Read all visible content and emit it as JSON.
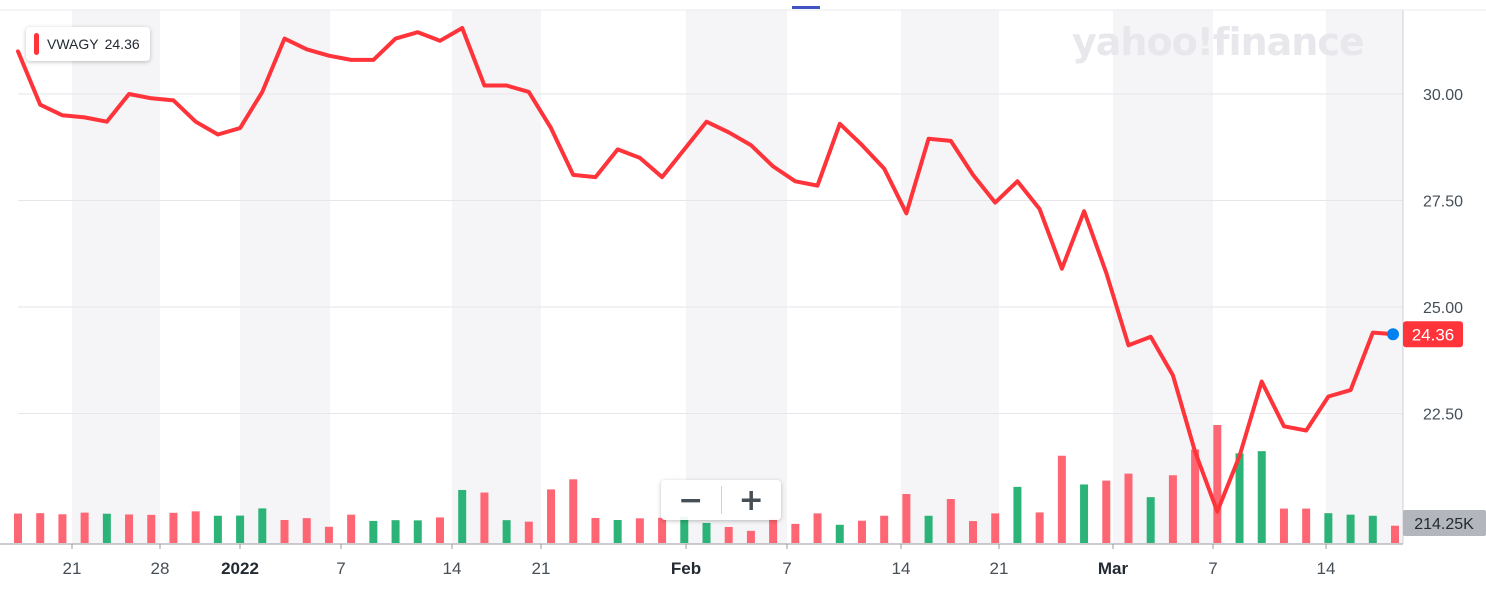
{
  "chart_data": {
    "type": "line",
    "symbol": "VWAGY",
    "watermark": "yahoo!finance",
    "last_value_label": "24.36",
    "volume_label": "214.25K",
    "colors": {
      "line": "#ff333a",
      "up": "#2cb377",
      "down": "#ff6673",
      "last_marker": "#0081f2",
      "volume_badge": "#b4b6bd"
    },
    "grid": true,
    "y_axis": {
      "position": "right",
      "ylim": [
        20,
        32
      ],
      "ticks": [
        "30.00",
        "27.50",
        "25.00",
        "22.50"
      ]
    },
    "x_ticks": [
      "21",
      "28",
      "2022",
      "7",
      "14",
      "21",
      "Feb",
      "7",
      "14",
      "21",
      "Mar",
      "7",
      "14"
    ],
    "series": [
      {
        "name": "VWAGY",
        "values": [
          31.0,
          29.75,
          29.5,
          29.45,
          29.35,
          30.0,
          29.9,
          29.85,
          29.35,
          29.05,
          29.2,
          30.05,
          31.3,
          31.05,
          30.9,
          30.8,
          30.8,
          31.3,
          31.45,
          31.25,
          31.55,
          30.2,
          30.2,
          30.05,
          29.2,
          28.1,
          28.05,
          28.7,
          28.5,
          28.05,
          28.7,
          29.35,
          29.1,
          28.8,
          28.3,
          27.95,
          27.85,
          29.3,
          28.8,
          28.25,
          27.2,
          28.95,
          28.9,
          28.1,
          27.45,
          27.95,
          27.3,
          25.9,
          27.25,
          25.8,
          24.1,
          24.3,
          23.4,
          21.6,
          20.2,
          21.5,
          23.25,
          22.2,
          22.1,
          22.9,
          23.05,
          24.4,
          24.36
        ]
      }
    ],
    "volume": {
      "values": [
        16,
        16.2,
        15.6,
        16.5,
        15.9,
        15.5,
        15.3,
        16.4,
        17.2,
        14.8,
        14.9,
        18.8,
        12.5,
        13.5,
        8.8,
        15.4,
        12,
        12.4,
        12.3,
        13.9,
        28.8,
        27.4,
        12.4,
        11.6,
        29.1,
        34.6,
        13.6,
        12.5,
        13.4,
        13.7,
        14.3,
        10.9,
        8.7,
        6.6,
        13.3,
        10.4,
        16.1,
        9.9,
        12.1,
        14.8,
        26.6,
        14.8,
        23.9,
        11.9,
        16.1,
        30.5,
        16.6,
        47.4,
        31.8,
        33.9,
        37.7,
        24.9,
        36.8,
        50.8,
        64.1,
        48.7,
        49.9,
        18.7,
        18.7,
        16.2,
        15.4,
        14.8,
        9.4
      ],
      "up": [
        false,
        false,
        false,
        false,
        true,
        false,
        false,
        false,
        false,
        true,
        true,
        true,
        false,
        false,
        false,
        false,
        true,
        true,
        true,
        false,
        true,
        false,
        true,
        false,
        false,
        false,
        false,
        true,
        false,
        false,
        true,
        true,
        false,
        false,
        false,
        false,
        false,
        true,
        false,
        false,
        false,
        true,
        false,
        false,
        false,
        true,
        false,
        false,
        true,
        false,
        false,
        true,
        false,
        false,
        false,
        true,
        true,
        false,
        false,
        true,
        true,
        true,
        false
      ]
    }
  },
  "zoom": {
    "out_label": "−",
    "in_label": "+"
  }
}
